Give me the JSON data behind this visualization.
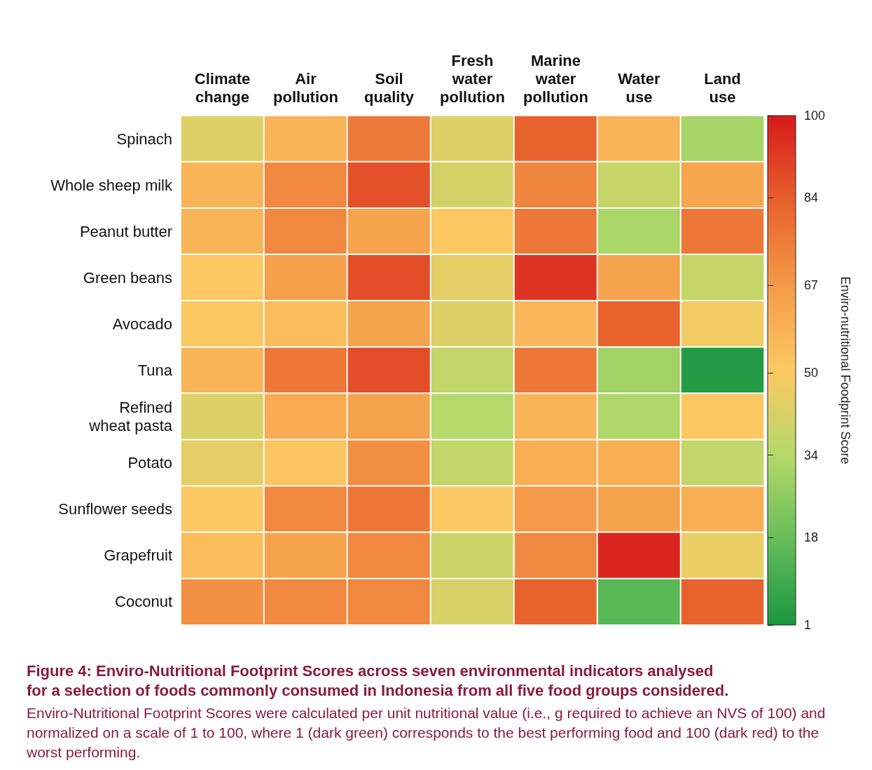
{
  "chart_data": {
    "type": "heatmap",
    "title": "Figure 4: Enviro-Nutritional Footprint Scores across seven environmental indicators analysed for a selection of foods commonly consumed in Indonesia from all five food groups considered.",
    "annotations": [
      "Enviro-Nutritional Footprint Scores were calculated per unit nutritional value (i.e., g required to achieve an NVS of 100) and normalized on a scale of 1 to 100, where 1 (dark green) corresponds to the best performing food and 100 (dark red) to the worst performing."
    ],
    "categories": [
      "Climate\nchange",
      "Air\npollution",
      "Soil\nquality",
      "Fresh\nwater\npollution",
      "Marine\nwater\npollution",
      "Water\nuse",
      "Land\nuse"
    ],
    "y_categories": [
      "Spinach",
      "Whole sheep milk",
      "Peanut butter",
      "Green beans",
      "Avocado",
      "Tuna",
      "Refined\nwheat pasta",
      "Potato",
      "Sunflower seeds",
      "Grapefruit",
      "Coconut"
    ],
    "cells": [
      [
        43,
        58,
        76,
        43,
        83,
        58,
        31
      ],
      [
        58,
        72,
        87,
        41,
        73,
        38,
        63
      ],
      [
        58,
        72,
        64,
        51,
        77,
        32,
        77
      ],
      [
        51,
        65,
        88,
        45,
        94,
        64,
        38
      ],
      [
        51,
        55,
        64,
        43,
        57,
        83,
        48
      ],
      [
        58,
        77,
        88,
        37,
        77,
        30,
        3
      ],
      [
        43,
        61,
        64,
        34,
        58,
        33,
        51
      ],
      [
        45,
        52,
        70,
        37,
        60,
        60,
        37
      ],
      [
        51,
        72,
        77,
        50,
        67,
        64,
        60
      ],
      [
        55,
        64,
        72,
        39,
        72,
        97,
        46
      ],
      [
        70,
        72,
        72,
        42,
        83,
        15,
        83
      ]
    ],
    "clabel": "Enviro-nutritional Foodprint Score",
    "clim": [
      1,
      100
    ],
    "cticks": [
      1,
      18,
      34,
      50,
      67,
      84,
      100
    ]
  }
}
